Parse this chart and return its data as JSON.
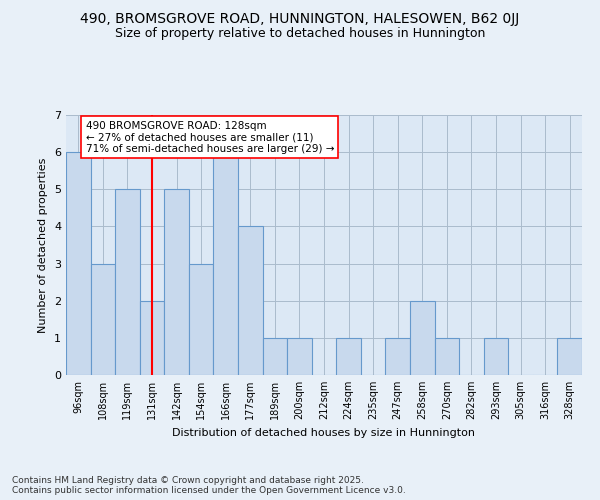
{
  "title1": "490, BROMSGROVE ROAD, HUNNINGTON, HALESOWEN, B62 0JJ",
  "title2": "Size of property relative to detached houses in Hunnington",
  "xlabel": "Distribution of detached houses by size in Hunnington",
  "ylabel": "Number of detached properties",
  "categories": [
    "96sqm",
    "108sqm",
    "119sqm",
    "131sqm",
    "142sqm",
    "154sqm",
    "166sqm",
    "177sqm",
    "189sqm",
    "200sqm",
    "212sqm",
    "224sqm",
    "235sqm",
    "247sqm",
    "258sqm",
    "270sqm",
    "282sqm",
    "293sqm",
    "305sqm",
    "316sqm",
    "328sqm"
  ],
  "values": [
    6,
    3,
    5,
    2,
    5,
    3,
    6,
    4,
    1,
    1,
    0,
    1,
    0,
    1,
    2,
    1,
    0,
    1,
    0,
    0,
    1
  ],
  "bar_color": "#c8d9ed",
  "bar_edge_color": "#6699cc",
  "red_line_index": 3,
  "annotation_text": "490 BROMSGROVE ROAD: 128sqm\n← 27% of detached houses are smaller (11)\n71% of semi-detached houses are larger (29) →",
  "annotation_box_color": "white",
  "annotation_box_edge": "red",
  "ylim": [
    0,
    7
  ],
  "yticks": [
    0,
    1,
    2,
    3,
    4,
    5,
    6,
    7
  ],
  "footnote": "Contains HM Land Registry data © Crown copyright and database right 2025.\nContains public sector information licensed under the Open Government Licence v3.0.",
  "bg_color": "#e8f0f8",
  "plot_bg_color": "#dce8f5"
}
